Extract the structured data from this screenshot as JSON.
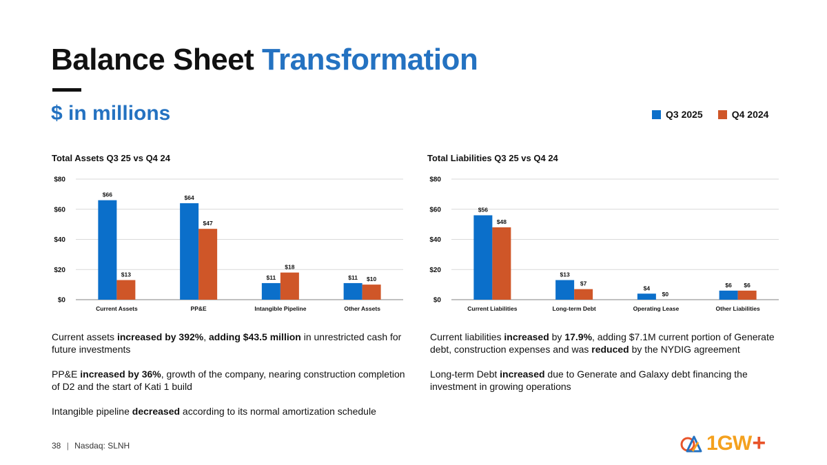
{
  "slide": {
    "title_main": "Balance Sheet",
    "title_accent": "Transformation",
    "subtitle": "$ in millions",
    "colors": {
      "accent": "#2472c1",
      "q3": "#0b6fca",
      "q4": "#cf5628"
    }
  },
  "legend": {
    "items": [
      {
        "label": "Q3 2025"
      },
      {
        "label": "Q4 2024"
      }
    ]
  },
  "charts": {
    "assets_title": "Total Assets Q3 25 vs Q4 24",
    "liabilities_title": "Total Liabilities Q3 25 vs Q4 24"
  },
  "chart_data": [
    {
      "type": "bar",
      "title": "Total Assets Q3 25 vs Q4 24",
      "categories": [
        "Current Assets",
        "PP&E",
        "Intangible Pipeline",
        "Other Assets"
      ],
      "series": [
        {
          "name": "Q3 2025",
          "values": [
            66,
            64,
            11,
            11
          ],
          "labels": [
            "$66",
            "$64",
            "$11",
            "$11"
          ]
        },
        {
          "name": "Q4 2024",
          "values": [
            13,
            47,
            18,
            10
          ],
          "labels": [
            "$13",
            "$47",
            "$18",
            "$10"
          ]
        }
      ],
      "ylim": [
        0,
        80
      ],
      "yticks": [
        0,
        20,
        40,
        60,
        80
      ],
      "ytick_labels": [
        "$0",
        "$20",
        "$40",
        "$60",
        "$80"
      ],
      "xlabel": "",
      "ylabel": "",
      "grid": true
    },
    {
      "type": "bar",
      "title": "Total Liabilities Q3 25 vs Q4 24",
      "categories": [
        "Current Liabilities",
        "Long-term Debt",
        "Operating Lease",
        "Other Liabilities"
      ],
      "series": [
        {
          "name": "Q3 2025",
          "values": [
            56,
            13,
            4,
            6
          ],
          "labels": [
            "$56",
            "$13",
            "$4",
            "$6"
          ]
        },
        {
          "name": "Q4 2024",
          "values": [
            48,
            7,
            0,
            6
          ],
          "labels": [
            "$48",
            "$7",
            "$0",
            "$6"
          ]
        }
      ],
      "ylim": [
        0,
        80
      ],
      "yticks": [
        0,
        20,
        40,
        60,
        80
      ],
      "ytick_labels": [
        "$0",
        "$20",
        "$40",
        "$60",
        "$80"
      ],
      "xlabel": "",
      "ylabel": "",
      "grid": true
    }
  ],
  "notes_left": [
    [
      {
        "t": "Current assets "
      },
      {
        "t": "increased by 392%",
        "b": true
      },
      {
        "t": ", "
      },
      {
        "t": "adding $43.5 million",
        "b": true
      },
      {
        "t": " in unrestricted cash for future investments"
      }
    ],
    [
      {
        "t": "PP&E "
      },
      {
        "t": "increased by 36%",
        "b": true
      },
      {
        "t": ", growth of the company, nearing construction completion of D2 and the start of Kati 1 build"
      }
    ],
    [
      {
        "t": "Intangible pipeline "
      },
      {
        "t": "decreased",
        "b": true
      },
      {
        "t": " according to its normal amortization schedule"
      }
    ]
  ],
  "notes_right": [
    [
      {
        "t": "Current liabilities "
      },
      {
        "t": "increased",
        "b": true
      },
      {
        "t": " by "
      },
      {
        "t": "17.9%",
        "b": true
      },
      {
        "t": ", adding $7.1M current portion of Generate debt, construction expenses and was "
      },
      {
        "t": "reduced",
        "b": true
      },
      {
        "t": " by the NYDIG agreement"
      }
    ],
    [
      {
        "t": "Long-term Debt "
      },
      {
        "t": "increased",
        "b": true
      },
      {
        "t": " due to Generate and Galaxy debt financing the investment in growing operations"
      }
    ]
  ],
  "footer": {
    "page": "38",
    "separator": "|",
    "ticker": "Nasdaq: SLNH"
  },
  "logo": {
    "text": "1GW",
    "plus": "+",
    "icon": "solar-triangle-icon"
  }
}
